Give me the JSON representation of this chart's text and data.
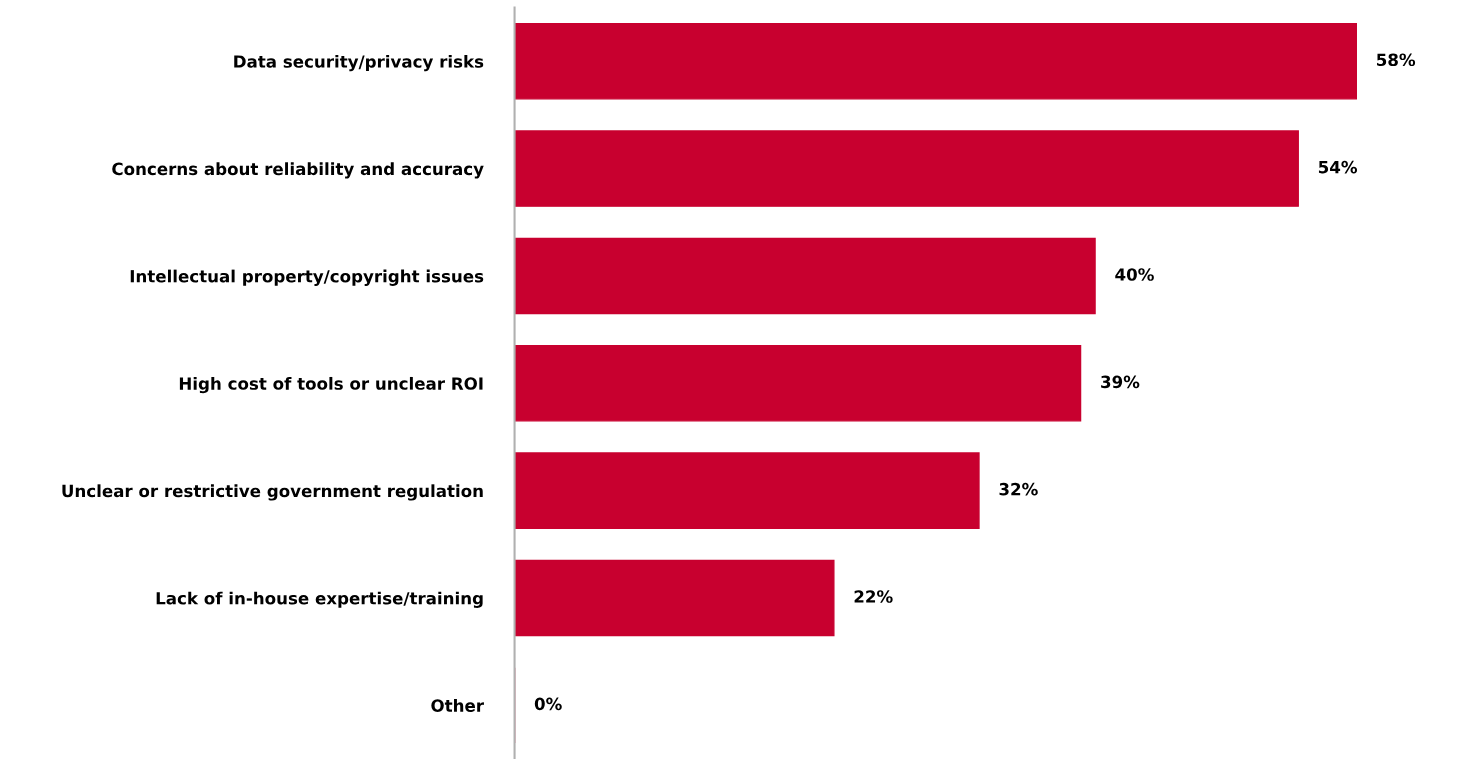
{
  "chart_data": {
    "type": "bar",
    "orientation": "horizontal",
    "categories": [
      "Data security/privacy risks",
      "Concerns about reliability and accuracy",
      "Intellectual property/copyright issues",
      "High cost of tools or unclear ROI",
      "Unclear or restrictive government regulation",
      "Lack of in-house expertise/training",
      "Other"
    ],
    "values": [
      58,
      54,
      40,
      39,
      32,
      22,
      0
    ],
    "value_labels": [
      "58%",
      "54%",
      "40%",
      "39%",
      "32%",
      "22%",
      "0%"
    ],
    "color": "#c8002f",
    "grid": false,
    "legend": false
  }
}
